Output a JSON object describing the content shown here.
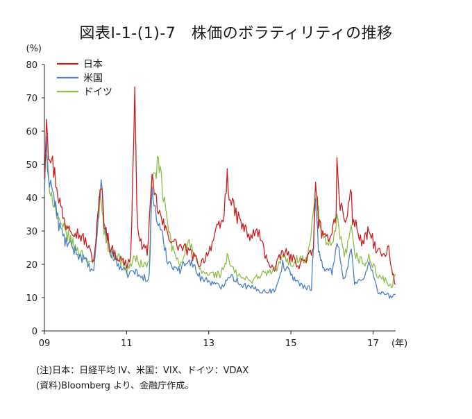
{
  "chart_data": {
    "type": "line",
    "title": "図表Ⅰ-1-(1)-7　株価のボラティリティの推移",
    "ylabel": "(%)",
    "xlabel": "(年)",
    "ylim": [
      0,
      80
    ],
    "yticks": [
      0,
      10,
      20,
      30,
      40,
      50,
      60,
      70,
      80
    ],
    "xlim": [
      2009.0,
      2017.55
    ],
    "xticks": [
      2009,
      2011,
      2013,
      2015,
      2017
    ],
    "xtick_labels": [
      "09",
      "11",
      "13",
      "15",
      "17"
    ],
    "grid": false,
    "legend_position": "top-left",
    "colors": {
      "日本": "#c81e1e",
      "米国": "#4a7fc8",
      "ドイツ": "#8cbf4a"
    },
    "series": [
      {
        "name": "日本",
        "points": [
          [
            2009.0,
            47
          ],
          [
            2009.05,
            66
          ],
          [
            2009.1,
            55
          ],
          [
            2009.15,
            53
          ],
          [
            2009.25,
            47
          ],
          [
            2009.4,
            37
          ],
          [
            2009.5,
            32
          ],
          [
            2009.6,
            32
          ],
          [
            2009.75,
            30
          ],
          [
            2010.0,
            27
          ],
          [
            2010.2,
            21
          ],
          [
            2010.38,
            44
          ],
          [
            2010.45,
            33
          ],
          [
            2010.6,
            25
          ],
          [
            2010.8,
            22
          ],
          [
            2011.0,
            20
          ],
          [
            2011.1,
            22
          ],
          [
            2011.2,
            70
          ],
          [
            2011.25,
            35
          ],
          [
            2011.35,
            26
          ],
          [
            2011.5,
            24
          ],
          [
            2011.62,
            44
          ],
          [
            2011.7,
            40
          ],
          [
            2011.8,
            35
          ],
          [
            2011.95,
            30
          ],
          [
            2012.2,
            26
          ],
          [
            2012.5,
            24
          ],
          [
            2012.8,
            20
          ],
          [
            2013.0,
            24
          ],
          [
            2013.2,
            30
          ],
          [
            2013.35,
            33
          ],
          [
            2013.45,
            46
          ],
          [
            2013.55,
            38
          ],
          [
            2013.75,
            33
          ],
          [
            2014.0,
            28
          ],
          [
            2014.2,
            30
          ],
          [
            2014.4,
            22
          ],
          [
            2014.6,
            18
          ],
          [
            2014.8,
            24
          ],
          [
            2015.0,
            22
          ],
          [
            2015.2,
            20
          ],
          [
            2015.4,
            22
          ],
          [
            2015.55,
            24
          ],
          [
            2015.6,
            47
          ],
          [
            2015.67,
            33
          ],
          [
            2015.8,
            27
          ],
          [
            2016.0,
            30
          ],
          [
            2016.1,
            36
          ],
          [
            2016.12,
            50
          ],
          [
            2016.2,
            38
          ],
          [
            2016.35,
            32
          ],
          [
            2016.45,
            44
          ],
          [
            2016.5,
            34
          ],
          [
            2016.75,
            26
          ],
          [
            2016.9,
            30
          ],
          [
            2017.1,
            24
          ],
          [
            2017.3,
            22
          ],
          [
            2017.38,
            25
          ],
          [
            2017.45,
            18
          ],
          [
            2017.55,
            14
          ]
        ]
      },
      {
        "name": "米国",
        "points": [
          [
            2009.0,
            42
          ],
          [
            2009.05,
            55
          ],
          [
            2009.1,
            47
          ],
          [
            2009.2,
            42
          ],
          [
            2009.35,
            32
          ],
          [
            2009.5,
            27
          ],
          [
            2009.75,
            24
          ],
          [
            2010.0,
            21
          ],
          [
            2010.2,
            17
          ],
          [
            2010.38,
            46
          ],
          [
            2010.45,
            33
          ],
          [
            2010.6,
            24
          ],
          [
            2010.8,
            20
          ],
          [
            2011.0,
            17
          ],
          [
            2011.2,
            18
          ],
          [
            2011.35,
            16
          ],
          [
            2011.55,
            16
          ],
          [
            2011.62,
            42
          ],
          [
            2011.75,
            33
          ],
          [
            2011.9,
            27
          ],
          [
            2012.0,
            21
          ],
          [
            2012.3,
            18
          ],
          [
            2012.5,
            22
          ],
          [
            2012.8,
            16
          ],
          [
            2013.0,
            15
          ],
          [
            2013.3,
            13
          ],
          [
            2013.5,
            17
          ],
          [
            2013.8,
            14
          ],
          [
            2014.0,
            13
          ],
          [
            2014.3,
            12
          ],
          [
            2014.6,
            12
          ],
          [
            2014.8,
            20
          ],
          [
            2015.0,
            17
          ],
          [
            2015.3,
            13
          ],
          [
            2015.5,
            13
          ],
          [
            2015.6,
            40
          ],
          [
            2015.67,
            25
          ],
          [
            2015.8,
            18
          ],
          [
            2016.0,
            18
          ],
          [
            2016.12,
            27
          ],
          [
            2016.3,
            15
          ],
          [
            2016.47,
            25
          ],
          [
            2016.55,
            14
          ],
          [
            2016.8,
            16
          ],
          [
            2016.9,
            22
          ],
          [
            2017.1,
            12
          ],
          [
            2017.3,
            11
          ],
          [
            2017.45,
            10
          ],
          [
            2017.55,
            11
          ]
        ]
      },
      {
        "name": "ドイツ",
        "points": [
          [
            2009.0,
            45
          ],
          [
            2009.05,
            52
          ],
          [
            2009.1,
            46
          ],
          [
            2009.2,
            40
          ],
          [
            2009.35,
            32
          ],
          [
            2009.5,
            30
          ],
          [
            2009.75,
            25
          ],
          [
            2010.0,
            22
          ],
          [
            2010.2,
            20
          ],
          [
            2010.38,
            42
          ],
          [
            2010.45,
            30
          ],
          [
            2010.6,
            23
          ],
          [
            2010.8,
            22
          ],
          [
            2011.0,
            18
          ],
          [
            2011.2,
            22
          ],
          [
            2011.35,
            20
          ],
          [
            2011.55,
            20
          ],
          [
            2011.62,
            44
          ],
          [
            2011.75,
            50
          ],
          [
            2011.82,
            47
          ],
          [
            2011.95,
            36
          ],
          [
            2012.1,
            25
          ],
          [
            2012.3,
            20
          ],
          [
            2012.5,
            27
          ],
          [
            2012.8,
            18
          ],
          [
            2013.0,
            17
          ],
          [
            2013.3,
            17
          ],
          [
            2013.45,
            22
          ],
          [
            2013.6,
            18
          ],
          [
            2013.8,
            16
          ],
          [
            2014.0,
            15
          ],
          [
            2014.3,
            17
          ],
          [
            2014.6,
            18
          ],
          [
            2014.8,
            22
          ],
          [
            2015.0,
            20
          ],
          [
            2015.2,
            22
          ],
          [
            2015.4,
            21
          ],
          [
            2015.6,
            40
          ],
          [
            2015.67,
            35
          ],
          [
            2015.8,
            27
          ],
          [
            2016.0,
            25
          ],
          [
            2016.12,
            33
          ],
          [
            2016.3,
            22
          ],
          [
            2016.47,
            30
          ],
          [
            2016.55,
            23
          ],
          [
            2016.8,
            20
          ],
          [
            2016.9,
            22
          ],
          [
            2017.1,
            17
          ],
          [
            2017.3,
            15
          ],
          [
            2017.45,
            13
          ],
          [
            2017.55,
            17
          ]
        ]
      }
    ]
  },
  "notes": [
    "(注)日本：日経平均 IV、米国：VIX、ドイツ：VDAX",
    "(資料)Bloomberg より、金融庁作成。"
  ]
}
